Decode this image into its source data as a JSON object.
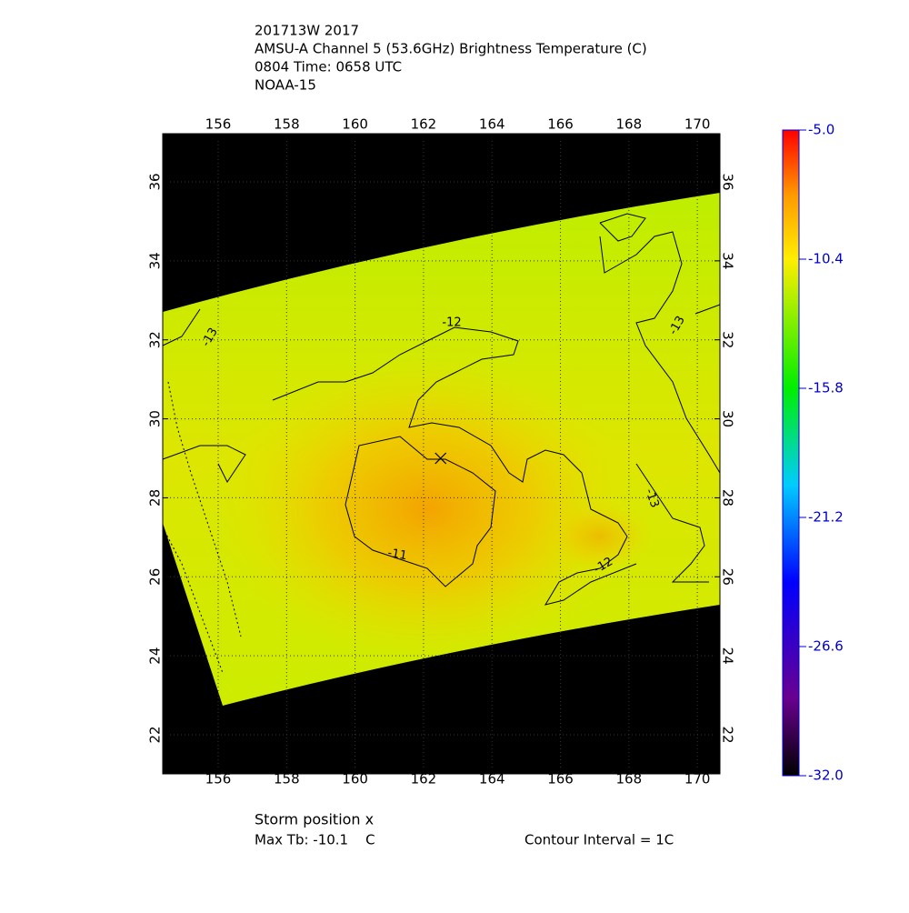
{
  "title_lines": [
    "201713W 2017",
    "AMSU-A Channel 5 (53.6GHz) Brightness Temperature (C)",
    "0804 Time: 0658 UTC",
    "NOAA-15"
  ],
  "map": {
    "xlim": [
      154.38,
      170.66
    ],
    "ylim": [
      21.01,
      37.22
    ],
    "xticks": [
      156,
      158,
      160,
      162,
      164,
      166,
      168,
      170
    ],
    "yticks": [
      22,
      24,
      26,
      28,
      30,
      32,
      34,
      36
    ],
    "grid": true,
    "storm": {
      "lon": 162.5,
      "lat": 29.0
    },
    "contour_labels": [
      "-12",
      "-13",
      "-13",
      "-11",
      "-12",
      "-13"
    ]
  },
  "colorbar": {
    "lim": [
      -32.0,
      -5.0
    ],
    "ticks": [
      {
        "value": -5.0,
        "label": "-5.0"
      },
      {
        "value": -10.4,
        "label": "-10.4"
      },
      {
        "value": -15.8,
        "label": "-15.8"
      },
      {
        "value": -21.2,
        "label": "-21.2"
      },
      {
        "value": -26.6,
        "label": "-26.6"
      },
      {
        "value": -32.0,
        "label": "-32.0"
      }
    ]
  },
  "footer": {
    "storm_note": "Storm position x",
    "max_tb": "Max Tb: -10.1    C",
    "contour_interval": "Contour Interval = 1C"
  }
}
